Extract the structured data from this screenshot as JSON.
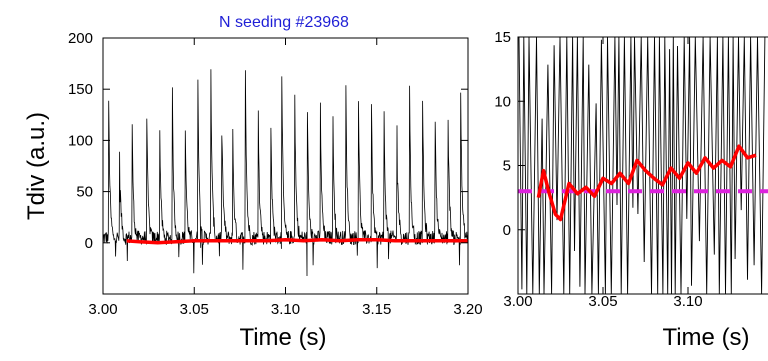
{
  "colors": {
    "raw_signal": "#000000",
    "smoothed": "#ff0000",
    "threshold": "#dd22dd",
    "title": "#1f1fd6"
  },
  "chart_data": [
    {
      "type": "line",
      "title": "N seeding #23968",
      "xlabel": "Time (s)",
      "ylabel": "Tdiv (a.u.)",
      "xlim": [
        3.0,
        3.2
      ],
      "ylim": [
        -50,
        200
      ],
      "x_ticks": [
        "3.00",
        "3.05",
        "3.10",
        "3.15",
        "3.20"
      ],
      "y_ticks": [
        "0",
        "50",
        "100",
        "150",
        "200"
      ],
      "grid": false,
      "series": [
        {
          "role": "raw",
          "color": "#000000",
          "baseline": 5,
          "noise": 7,
          "elm_times": [
            3.003,
            3.009,
            3.016,
            3.024,
            3.031,
            3.038,
            3.045,
            3.052,
            3.059,
            3.065,
            3.071,
            3.078,
            3.085,
            3.092,
            3.098,
            3.105,
            3.112,
            3.119,
            3.126,
            3.133,
            3.14,
            3.147,
            3.154,
            3.161,
            3.168,
            3.175,
            3.182,
            3.189,
            3.196
          ],
          "elm_peaks": [
            158,
            98,
            108,
            118,
            121,
            140,
            125,
            160,
            190,
            150,
            120,
            165,
            145,
            110,
            152,
            160,
            125,
            150,
            118,
            170,
            135,
            150,
            120,
            125,
            145,
            160,
            120,
            138,
            142
          ]
        },
        {
          "role": "smoothed",
          "color": "#ff0000",
          "x": [
            3.013,
            3.02,
            3.03,
            3.04,
            3.05,
            3.06,
            3.07,
            3.08,
            3.09,
            3.1,
            3.11,
            3.12,
            3.13,
            3.14,
            3.15,
            3.16,
            3.17,
            3.18,
            3.19,
            3.2
          ],
          "y": [
            2,
            1,
            0,
            1,
            2,
            2,
            2,
            2,
            2,
            3,
            2,
            3,
            2,
            3,
            3,
            2,
            2,
            2,
            2,
            2
          ]
        }
      ]
    },
    {
      "type": "line",
      "xlabel": "Time (s)",
      "xlim": [
        3.0,
        3.15
      ],
      "ylim": [
        -5,
        15
      ],
      "x_ticks": [
        "3.00",
        "3.05",
        "3.10"
      ],
      "y_ticks": [
        "0",
        "5",
        "10",
        "15"
      ],
      "grid": false,
      "threshold": 3,
      "series": [
        {
          "role": "raw",
          "color": "#000000",
          "range": [
            -5,
            15
          ]
        },
        {
          "role": "smoothed",
          "color": "#ff0000",
          "x": [
            3.012,
            3.015,
            3.018,
            3.022,
            3.025,
            3.03,
            3.035,
            3.04,
            3.045,
            3.05,
            3.055,
            3.06,
            3.065,
            3.07,
            3.075,
            3.08,
            3.085,
            3.09,
            3.095,
            3.1,
            3.105,
            3.11,
            3.115,
            3.12,
            3.125,
            3.13,
            3.135,
            3.14
          ],
          "y": [
            2.5,
            4.6,
            3.0,
            1.2,
            0.8,
            3.6,
            2.8,
            3.3,
            2.6,
            4.0,
            3.6,
            4.4,
            3.6,
            5.4,
            4.6,
            4.0,
            3.5,
            4.8,
            4.0,
            5.2,
            4.4,
            5.6,
            4.8,
            5.4,
            4.9,
            6.5,
            5.6,
            5.8
          ]
        }
      ]
    }
  ]
}
